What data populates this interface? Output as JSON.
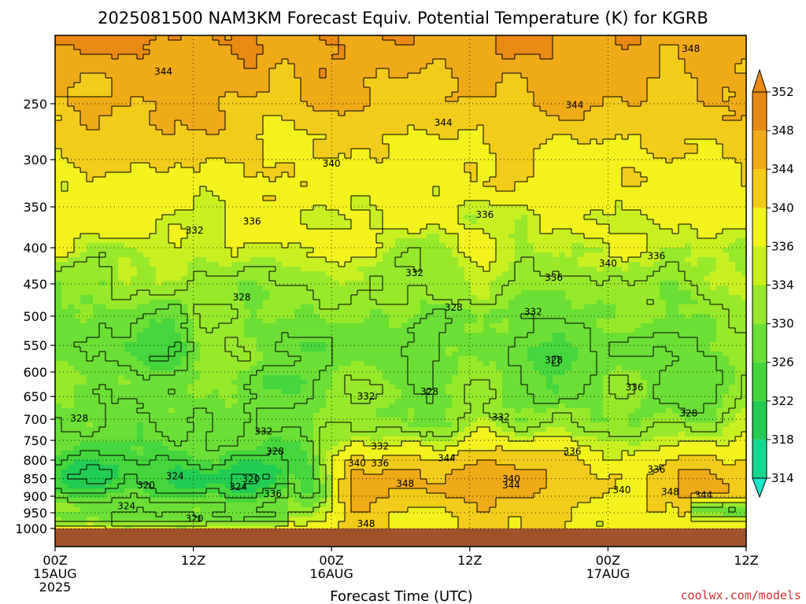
{
  "chart_data": {
    "type": "heatmap",
    "title": "2025081500 NAM3KM Forecast Equiv. Potential Temperature (K) for KGRB",
    "xlabel": "Forecast Time (UTC)",
    "ylabel": "",
    "x_ticks": [
      {
        "hour": 0,
        "lines": [
          "00Z",
          "15AUG",
          "2025"
        ]
      },
      {
        "hour": 12,
        "lines": [
          "12Z"
        ]
      },
      {
        "hour": 24,
        "lines": [
          "00Z",
          "16AUG"
        ]
      },
      {
        "hour": 36,
        "lines": [
          "12Z"
        ]
      },
      {
        "hour": 48,
        "lines": [
          "00Z",
          "17AUG"
        ]
      },
      {
        "hour": 60,
        "lines": [
          "12Z"
        ]
      }
    ],
    "xlim": [
      0,
      60
    ],
    "y_ticks": [
      250,
      300,
      350,
      400,
      450,
      500,
      550,
      600,
      650,
      700,
      750,
      800,
      850,
      900,
      950,
      1000
    ],
    "y_scale": "log",
    "ylim": [
      1000,
      200
    ],
    "grid": true,
    "colorbar": {
      "levels": [
        314,
        318,
        322,
        326,
        330,
        334,
        336,
        340,
        344,
        348,
        352
      ],
      "colors": [
        "#1de6c9",
        "#19d68f",
        "#22cc55",
        "#44d63c",
        "#6cdf35",
        "#98e82c",
        "#c8f020",
        "#f2f21c",
        "#f2cc1a",
        "#efaa18",
        "#e98a12"
      ],
      "extend": "both"
    },
    "contour_labels": [
      {
        "t": 9.4,
        "p": 225,
        "v": "344"
      },
      {
        "t": 33.7,
        "p": 266,
        "v": "344"
      },
      {
        "t": 45.1,
        "p": 251,
        "v": "344"
      },
      {
        "t": 55.2,
        "p": 209,
        "v": "348"
      },
      {
        "t": 24.0,
        "p": 304,
        "v": "340"
      },
      {
        "t": 12.1,
        "p": 378,
        "v": "332"
      },
      {
        "t": 17.1,
        "p": 367,
        "v": "336"
      },
      {
        "t": 37.3,
        "p": 359,
        "v": "336"
      },
      {
        "t": 48.0,
        "p": 421,
        "v": "340"
      },
      {
        "t": 52.2,
        "p": 411,
        "v": "336"
      },
      {
        "t": 31.2,
        "p": 434,
        "v": "332"
      },
      {
        "t": 43.3,
        "p": 441,
        "v": "336"
      },
      {
        "t": 16.2,
        "p": 470,
        "v": "328"
      },
      {
        "t": 34.6,
        "p": 486,
        "v": "328"
      },
      {
        "t": 41.5,
        "p": 493,
        "v": "332"
      },
      {
        "t": 43.3,
        "p": 577,
        "v": "328"
      },
      {
        "t": 2.1,
        "p": 698,
        "v": "328"
      },
      {
        "t": 27.0,
        "p": 650,
        "v": "332"
      },
      {
        "t": 32.5,
        "p": 640,
        "v": "328"
      },
      {
        "t": 38.7,
        "p": 695,
        "v": "332"
      },
      {
        "t": 50.3,
        "p": 631,
        "v": "336"
      },
      {
        "t": 55.0,
        "p": 687,
        "v": "328"
      },
      {
        "t": 18.1,
        "p": 728,
        "v": "332"
      },
      {
        "t": 28.2,
        "p": 765,
        "v": "332"
      },
      {
        "t": 19.1,
        "p": 778,
        "v": "328"
      },
      {
        "t": 34.0,
        "p": 795,
        "v": "344"
      },
      {
        "t": 44.9,
        "p": 778,
        "v": "336"
      },
      {
        "t": 26.2,
        "p": 808,
        "v": "340"
      },
      {
        "t": 28.2,
        "p": 808,
        "v": "336"
      },
      {
        "t": 52.2,
        "p": 825,
        "v": "336"
      },
      {
        "t": 39.6,
        "p": 851,
        "v": "340"
      },
      {
        "t": 39.6,
        "p": 868,
        "v": "344"
      },
      {
        "t": 30.4,
        "p": 864,
        "v": "348"
      },
      {
        "t": 10.4,
        "p": 843,
        "v": "324"
      },
      {
        "t": 7.9,
        "p": 868,
        "v": "320"
      },
      {
        "t": 17.0,
        "p": 851,
        "v": "320"
      },
      {
        "t": 15.9,
        "p": 873,
        "v": "324"
      },
      {
        "t": 18.9,
        "p": 893,
        "v": "336"
      },
      {
        "t": 49.2,
        "p": 882,
        "v": "340"
      },
      {
        "t": 53.4,
        "p": 888,
        "v": "348"
      },
      {
        "t": 56.3,
        "p": 897,
        "v": "344"
      },
      {
        "t": 6.2,
        "p": 929,
        "v": "324"
      },
      {
        "t": 12.1,
        "p": 969,
        "v": "320"
      },
      {
        "t": 27.0,
        "p": 985,
        "v": "348"
      }
    ]
  },
  "credit": "coolwx.com/models"
}
